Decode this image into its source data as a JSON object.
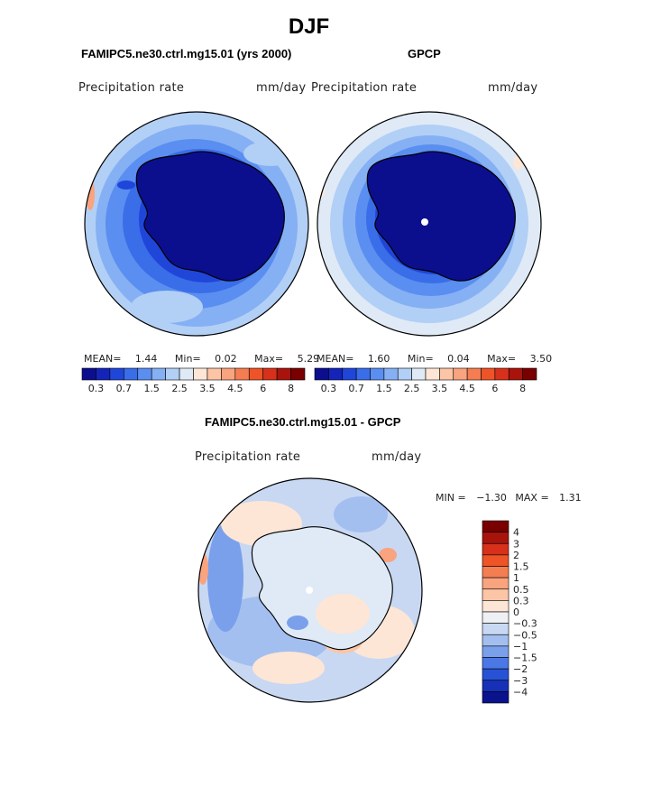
{
  "title": "DJF",
  "panels": [
    {
      "title": "FAMIPC5.ne30.ctrl.mg15.01 (yrs 2000)",
      "variable": "Precipitation rate",
      "units": "mm/day",
      "stats": {
        "mean_label": "MEAN=",
        "mean": "1.44",
        "min_label": "Min=",
        "min": "0.02",
        "max_label": "Max=",
        "max": "5.29"
      }
    },
    {
      "title": "GPCP",
      "variable": "Precipitation rate",
      "units": "mm/day",
      "stats": {
        "mean_label": "MEAN=",
        "mean": "1.60",
        "min_label": "Min=",
        "min": "0.04",
        "max_label": "Max=",
        "max": "3.50"
      }
    }
  ],
  "diff": {
    "title": "FAMIPC5.ne30.ctrl.mg15.01 - GPCP",
    "variable": "Precipitation rate",
    "units": "mm/day",
    "stats": {
      "min_label": "MIN =",
      "min": "−1.30",
      "max_label": "MAX =",
      "max": "1.31"
    }
  },
  "precip_colorbar": {
    "colors": [
      "#0b0f8e",
      "#1524b8",
      "#1f46d8",
      "#3a6de8",
      "#5a8ef0",
      "#86b0f4",
      "#b2cff6",
      "#dfeaf6",
      "#fde6d6",
      "#fbc5a6",
      "#f9a37f",
      "#f57d52",
      "#ee5427",
      "#d7301b",
      "#a8140c",
      "#7a0000"
    ],
    "tick_labels": [
      "0.3",
      "0.7",
      "1.5",
      "2.5",
      "3.5",
      "4.5",
      "6",
      "8"
    ]
  },
  "diff_colorbar": {
    "colors": [
      "#7a0000",
      "#a8140c",
      "#d7301b",
      "#ee5427",
      "#f57d52",
      "#f9a37f",
      "#fbc5a6",
      "#fde6d6",
      "#eef0f4",
      "#c8d8f2",
      "#a3bff0",
      "#7aa0ec",
      "#4c78e6",
      "#2852d6",
      "#1630b8",
      "#0a138c"
    ],
    "tick_labels": [
      "4",
      "3",
      "2",
      "1.5",
      "1",
      "0.5",
      "0.3",
      "0",
      "−0.3",
      "−0.5",
      "−1",
      "−1.5",
      "−2",
      "−3",
      "−4"
    ]
  }
}
